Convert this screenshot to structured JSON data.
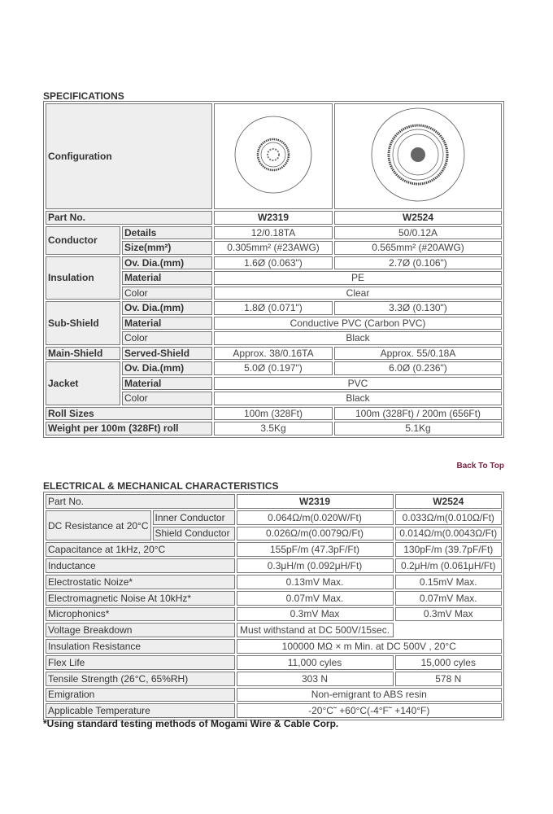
{
  "specifications": {
    "title": "SPECIFICATIONS",
    "configuration_label": "Configuration",
    "part_no_label": "Part No.",
    "parts": [
      "W2319",
      "W2524"
    ],
    "conductor": {
      "label": "Conductor",
      "details_label": "Details",
      "details": [
        "12/0.18TA",
        "50/0.12A"
      ],
      "size_label": "Size(mm²)",
      "size": [
        "0.305mm² (#23AWG)",
        "0.565mm² (#20AWG)"
      ]
    },
    "insulation": {
      "label": "Insulation",
      "dia_label": "Ov. Dia.(mm)",
      "dia": [
        "1.6Ø (0.063\")",
        "2.7Ø (0.106\")"
      ],
      "material_label": "Material",
      "material": "PE",
      "color_label": "Color",
      "color": "Clear"
    },
    "sub_shield": {
      "label": "Sub-Shield",
      "dia_label": "Ov. Dia.(mm)",
      "dia": [
        "1.8Ø (0.071\")",
        "3.3Ø (0.130\")"
      ],
      "material_label": "Material",
      "material": "Conductive PVC (Carbon PVC)",
      "color_label": "Color",
      "color": "Black"
    },
    "main_shield": {
      "label": "Main-Shield",
      "served_label": "Served-Shield",
      "served": [
        "Approx. 38/0.16TA",
        "Approx. 55/0.18A"
      ]
    },
    "jacket": {
      "label": "Jacket",
      "dia_label": "Ov. Dia.(mm)",
      "dia": [
        "5.0Ø (0.197\")",
        "6.0Ø (0.236\")"
      ],
      "material_label": "Material",
      "material": "PVC",
      "color_label": "Color",
      "color": "Black"
    },
    "roll": {
      "label": "Roll Sizes",
      "values": [
        "100m (328Ft)",
        "100m (328Ft) / 200m (656Ft)"
      ]
    },
    "weight": {
      "label": "Weight per 100m (328Ft) roll",
      "values": [
        "3.5Kg",
        "5.1Kg"
      ]
    }
  },
  "back_to_top": "Back To Top",
  "electrical": {
    "title": "ELECTRICAL & MECHANICAL CHARACTERISTICS",
    "part_no_label": "Part No.",
    "parts": [
      "W2319",
      "W2524"
    ],
    "dc": {
      "label": "DC Resistance at 20°C",
      "inner_label": "Inner Conductor",
      "inner": [
        "0.064Ω/m(0.020W/Ft)",
        "0.033Ω/m(0.010Ω/Ft)"
      ],
      "shield_label": "Shield Conductor",
      "shield": [
        "0.026Ω/m(0.0079Ω/Ft)",
        "0.014Ω/m(0.0043Ω/Ft)"
      ]
    },
    "rows": [
      {
        "label": "Capacitance at 1kHz, 20°C",
        "values": [
          "155pF/m (47.3pF/Ft)",
          "130pF/m (39.7pF/Ft)"
        ]
      },
      {
        "label": "Inductance",
        "values": [
          "0.3μH/m (0.092μH/Ft)",
          "0.2μH/m (0.061μH/Ft)"
        ]
      },
      {
        "label": "Electrostatic Noize*",
        "values": [
          "0.13mV Max.",
          "0.15mV Max."
        ]
      },
      {
        "label": "Electromagnetic Noise At 10kHz*",
        "values": [
          "0.07mV Max.",
          "0.07mV Max."
        ]
      },
      {
        "label": "Microphonics*",
        "values": [
          "0.3mV Max",
          "0.3mV Max"
        ]
      }
    ],
    "voltage": {
      "label": "Voltage Breakdown",
      "value": "Must withstand at DC 500V/15sec."
    },
    "insulation_resistance": {
      "label": "Insulation Resistance",
      "value": "100000 MΩ × m Min. at DC 500V , 20°C"
    },
    "flex": {
      "label": "Flex Life",
      "values": [
        "11,000 cyles",
        "15,000 cyles"
      ]
    },
    "tensile": {
      "label": "Tensile Strength (26°C, 65%RH)",
      "values": [
        "303 N",
        "578 N"
      ]
    },
    "emigration": {
      "label": "Emigration",
      "value": "Non-emigrant to ABS resin"
    },
    "temperature": {
      "label": "Applicable Temperature",
      "value": "-20°C˜ +60°C(-4°F˜ +140°F)"
    }
  },
  "footnote": "*Using standard testing methods of Mogami Wire & Cable Corp.",
  "colors": {
    "link": "#7a1f3d",
    "label_bg": "#eeeeee",
    "border": "#777777"
  }
}
